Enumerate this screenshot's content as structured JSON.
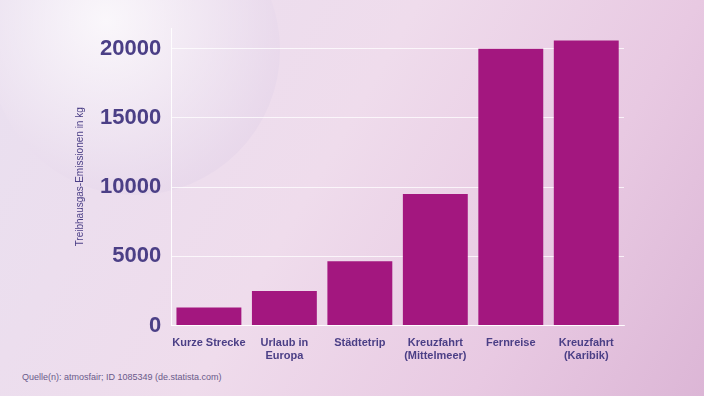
{
  "chart_data": {
    "type": "bar",
    "y_label": "Treibhausgas-Emissionen in kg",
    "categories": [
      "Kurze Strecke",
      "Urlaub in\nEuropa",
      "Städtetrip",
      "Kreuzfahrt\n(Mittelmeer)",
      "Fernreise",
      "Kreuzfahrt\n(Karibik)"
    ],
    "values": [
      1300,
      2500,
      4650,
      9500,
      20000,
      20600
    ],
    "color": "#a3177f",
    "ylim": [
      0,
      21500
    ],
    "yticks": [
      0,
      5000,
      10000,
      15000,
      20000
    ],
    "grid": true,
    "source": "Quelle(n): atmosfair; ID 1085349 (de.statista.com)"
  }
}
